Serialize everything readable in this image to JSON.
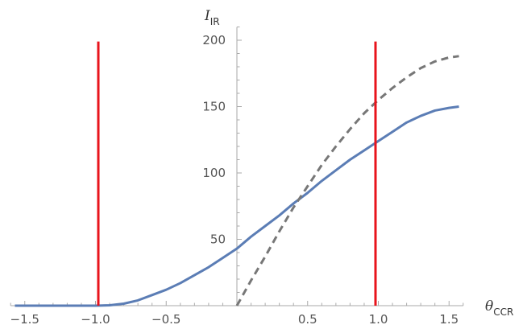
{
  "chart_data": {
    "type": "line",
    "xlabel": "θ",
    "xlabel_sub": "CCR",
    "ylabel": "I",
    "ylabel_sub": "IR",
    "xlim": [
      -1.6,
      1.6
    ],
    "ylim": [
      0,
      210
    ],
    "x_ticks": [
      -1.5,
      -1.0,
      -0.5,
      0.5,
      1.0,
      1.5
    ],
    "x_tick_labels": [
      "−1.5",
      "−1.0",
      "−0.5",
      "0.5",
      "1.0",
      "1.5"
    ],
    "y_ticks": [
      50,
      100,
      150,
      200
    ],
    "y_tick_labels": [
      "50",
      "100",
      "150",
      "200"
    ],
    "grid": false,
    "colors": {
      "solid": "#5b7db5",
      "dashed": "#777777",
      "vline": "#e8141c",
      "axis": "#aaaaaa"
    },
    "series": [
      {
        "style": "solid",
        "x": [
          -1.57,
          -1.4,
          -1.2,
          -1.0,
          -0.9,
          -0.8,
          -0.7,
          -0.6,
          -0.5,
          -0.4,
          -0.3,
          -0.2,
          -0.1,
          0.0,
          0.1,
          0.2,
          0.3,
          0.4,
          0.5,
          0.6,
          0.7,
          0.8,
          0.9,
          1.0,
          1.1,
          1.2,
          1.3,
          1.4,
          1.5,
          1.57
        ],
        "y": [
          0,
          0,
          0,
          0,
          0.3,
          1.5,
          4,
          8,
          12,
          17,
          23,
          29,
          36,
          43,
          52,
          60,
          68,
          77,
          85,
          94,
          102,
          110,
          117,
          124,
          131,
          138,
          143,
          147,
          149,
          150
        ]
      },
      {
        "style": "dashed",
        "x": [
          0.0,
          0.1,
          0.2,
          0.3,
          0.4,
          0.5,
          0.6,
          0.7,
          0.8,
          0.9,
          1.0,
          1.1,
          1.2,
          1.3,
          1.4,
          1.5,
          1.57
        ],
        "y": [
          0,
          19,
          37,
          56,
          74,
          90,
          106,
          120,
          133,
          145,
          155,
          164,
          172,
          179,
          184,
          187,
          188
        ]
      }
    ],
    "vlines": [
      -0.98,
      0.98
    ]
  }
}
